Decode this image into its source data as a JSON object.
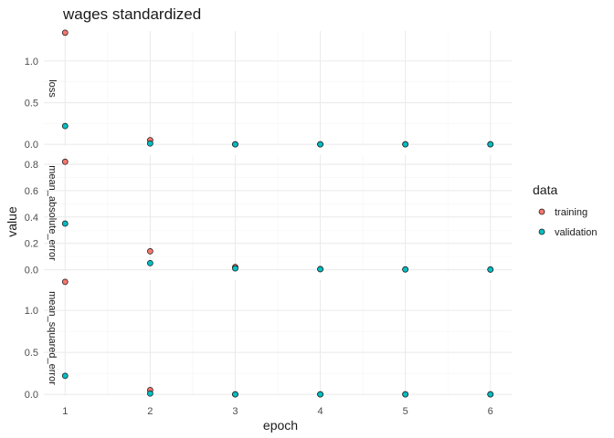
{
  "chart_data": {
    "type": "scatter",
    "title": "wages standardized",
    "xlabel": "epoch",
    "ylabel": "value",
    "x": [
      1,
      2,
      3,
      4,
      5,
      6
    ],
    "x_ticks": [
      "1",
      "2",
      "3",
      "4",
      "5",
      "6"
    ],
    "xlim": [
      0.75,
      6.25
    ],
    "legend": {
      "title": "data",
      "position": "right",
      "entries": [
        {
          "name": "training",
          "color": "#F8766D"
        },
        {
          "name": "validation",
          "color": "#00BFC4"
        }
      ]
    },
    "grid": true,
    "panels": [
      {
        "strip": "loss",
        "ylim": [
          -0.02,
          1.36
        ],
        "y_ticks": [
          "0.0",
          "0.5",
          "1.0"
        ],
        "y_tick_values": [
          0.0,
          0.5,
          1.0
        ],
        "series": [
          {
            "name": "training",
            "values": [
              1.34,
              0.05,
              0.0,
              0.0,
              0.0,
              0.0
            ]
          },
          {
            "name": "validation",
            "values": [
              0.22,
              0.01,
              0.0,
              0.0,
              0.0,
              0.0
            ]
          }
        ]
      },
      {
        "strip": "mean_absolute_error",
        "ylim": [
          -0.01,
          0.87
        ],
        "y_ticks": [
          "0.0",
          "0.2",
          "0.4",
          "0.6",
          "0.8"
        ],
        "y_tick_values": [
          0.0,
          0.2,
          0.4,
          0.6,
          0.8
        ],
        "series": [
          {
            "name": "training",
            "values": [
              0.82,
              0.14,
              0.02,
              0.005,
              0.002,
              0.001
            ]
          },
          {
            "name": "validation",
            "values": [
              0.35,
              0.05,
              0.01,
              0.004,
              0.002,
              0.001
            ]
          }
        ]
      },
      {
        "strip": "mean_squared_error",
        "ylim": [
          -0.02,
          1.36
        ],
        "y_ticks": [
          "0.0",
          "0.5",
          "1.0"
        ],
        "y_tick_values": [
          0.0,
          0.5,
          1.0
        ],
        "series": [
          {
            "name": "training",
            "values": [
              1.34,
              0.05,
              0.0,
              0.0,
              0.0,
              0.0
            ]
          },
          {
            "name": "validation",
            "values": [
              0.22,
              0.01,
              0.0,
              0.0,
              0.0,
              0.0
            ]
          }
        ]
      }
    ]
  }
}
